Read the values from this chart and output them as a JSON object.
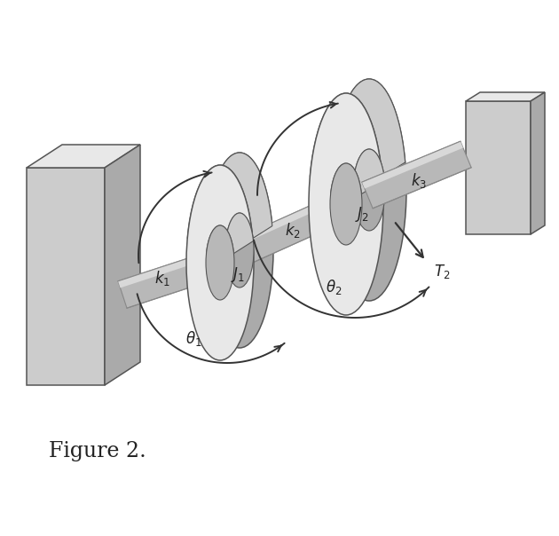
{
  "fig_width": 6.3,
  "fig_height": 6.04,
  "dpi": 100,
  "bg_color": "#ffffff",
  "label_fontsize": 12,
  "figure_label": "Figure 2.",
  "figure_label_fontsize": 17,
  "gray_light": "#e8e8e8",
  "gray_mid": "#cccccc",
  "gray_dark": "#aaaaaa",
  "gray_darker": "#888888",
  "gray_shaft": "#b8b8b8",
  "gray_shaft_hi": "#d8d8d8",
  "edge_color": "#555555",
  "arrow_color": "#333333",
  "text_color": "#222222"
}
